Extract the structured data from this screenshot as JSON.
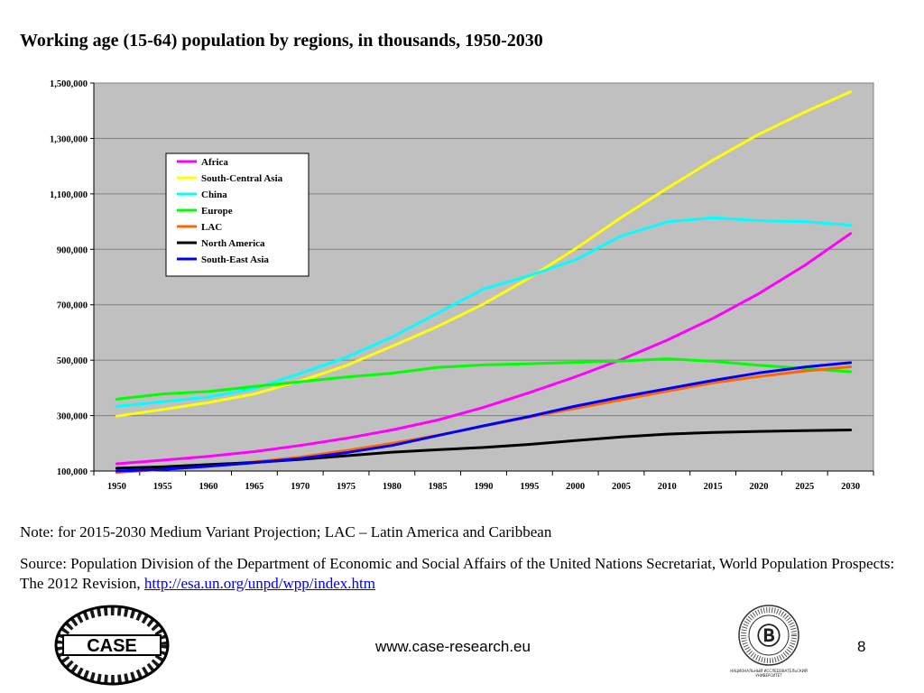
{
  "title": "Working age (15-64) population by regions, in thousands, 1950-2030",
  "note": "Note: for 2015-2030 Medium Variant Projection; LAC – Latin America and Caribbean",
  "source_text": "Source: Population Division of the Department of Economic and Social Affairs of the United Nations Secretariat, World Population Prospects: The 2012 Revision,",
  "source_link": "http://esa.un.org/unpd/wpp/index.htm",
  "footer_url": "www.case-research.eu",
  "page_number": "8",
  "case_logo_text": "CASE",
  "hse_caption": "НАЦИОНАЛЬНЫЙ ИССЛЕДОВАТЕЛЬСКИЙ УНИВЕРСИТЕТ",
  "colors": {
    "plot_bg": "#c0c0c0",
    "gridline": "#808080"
  },
  "chart_data": {
    "type": "line",
    "title": "Working age (15-64) population by regions, in thousands, 1950-2030",
    "xlabel": "",
    "ylabel": "",
    "x": [
      "1950",
      "1955",
      "1960",
      "1965",
      "1970",
      "1975",
      "1980",
      "1985",
      "1990",
      "1995",
      "2000",
      "2005",
      "2010",
      "2015",
      "2020",
      "2025",
      "2030"
    ],
    "ylim": [
      100000,
      1500000
    ],
    "yticks": [
      100000,
      300000,
      500000,
      700000,
      900000,
      1100000,
      1300000,
      1500000
    ],
    "ytick_labels": [
      "100,000",
      "300,000",
      "500,000",
      "700,000",
      "900,000",
      "1,100,000",
      "1,300,000",
      "1,500,000"
    ],
    "grid": true,
    "legend_position": "top-left inside plot",
    "series": [
      {
        "name": "Africa",
        "color": "#ff00ff",
        "values": [
          126000,
          139000,
          153000,
          170000,
          192000,
          218000,
          248000,
          284000,
          330000,
          383000,
          440000,
          502000,
          572000,
          651000,
          740000,
          842000,
          957000
        ]
      },
      {
        "name": "South-Central Asia",
        "color": "#ffff00",
        "values": [
          298000,
          322000,
          347000,
          378000,
          425000,
          480000,
          550000,
          622000,
          703000,
          797000,
          902000,
          1015000,
          1120000,
          1222000,
          1315000,
          1395000,
          1468000
        ]
      },
      {
        "name": "China",
        "color": "#00ffff",
        "values": [
          333000,
          350000,
          367000,
          398000,
          452000,
          510000,
          583000,
          670000,
          757000,
          805000,
          862000,
          948000,
          999000,
          1014000,
          1003000,
          1000000,
          987000
        ]
      },
      {
        "name": "Europe",
        "color": "#00ff00",
        "values": [
          359000,
          378000,
          387000,
          405000,
          422000,
          439000,
          453000,
          474000,
          483000,
          487000,
          492000,
          497000,
          505000,
          496000,
          482000,
          470000,
          458000
        ]
      },
      {
        "name": "LAC",
        "color": "#ff6600",
        "values": [
          95000,
          106000,
          118000,
          133000,
          150000,
          174000,
          200000,
          229000,
          262000,
          295000,
          326000,
          357000,
          388000,
          418000,
          441000,
          461000,
          476000
        ]
      },
      {
        "name": "North America",
        "color": "#000000",
        "values": [
          110000,
          115000,
          123000,
          131000,
          142000,
          155000,
          168000,
          177000,
          185000,
          196000,
          210000,
          223000,
          233000,
          239000,
          243000,
          246000,
          248000
        ]
      },
      {
        "name": "South-East Asia",
        "color": "#0000ff",
        "values": [
          100000,
          106000,
          117000,
          130000,
          145000,
          166000,
          192000,
          228000,
          263000,
          297000,
          334000,
          367000,
          397000,
          427000,
          454000,
          475000,
          491000
        ]
      }
    ]
  }
}
